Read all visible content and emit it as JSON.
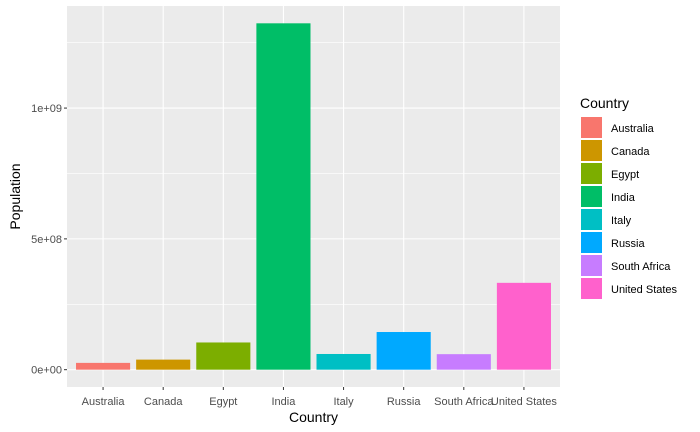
{
  "chart_data": {
    "type": "bar",
    "categories": [
      "Australia",
      "Canada",
      "Egypt",
      "India",
      "Italy",
      "Russia",
      "South Africa",
      "United States"
    ],
    "values": [
      26000000,
      38500000,
      104000000,
      1324000000,
      60000000,
      144000000,
      59300000,
      332000000
    ],
    "colors": [
      "#F8766D",
      "#CD9600",
      "#7CAE00",
      "#00BE67",
      "#00BFC4",
      "#00A9FF",
      "#C77CFF",
      "#FF61CC"
    ],
    "xlabel": "Country",
    "ylabel": "Population",
    "ylim": [
      -66200000,
      1390200000
    ],
    "yticks": [
      0,
      500000000,
      1000000000
    ],
    "ytick_labels": [
      "0e+00",
      "5e+08",
      "1e+09"
    ],
    "grid": true,
    "legend": {
      "title": "Country",
      "placement": "right",
      "entries": [
        "Australia",
        "Canada",
        "Egypt",
        "India",
        "Italy",
        "Russia",
        "South Africa",
        "United States"
      ]
    },
    "panel_background": "#EBEBEB",
    "grid_color": "#FFFFFF"
  }
}
